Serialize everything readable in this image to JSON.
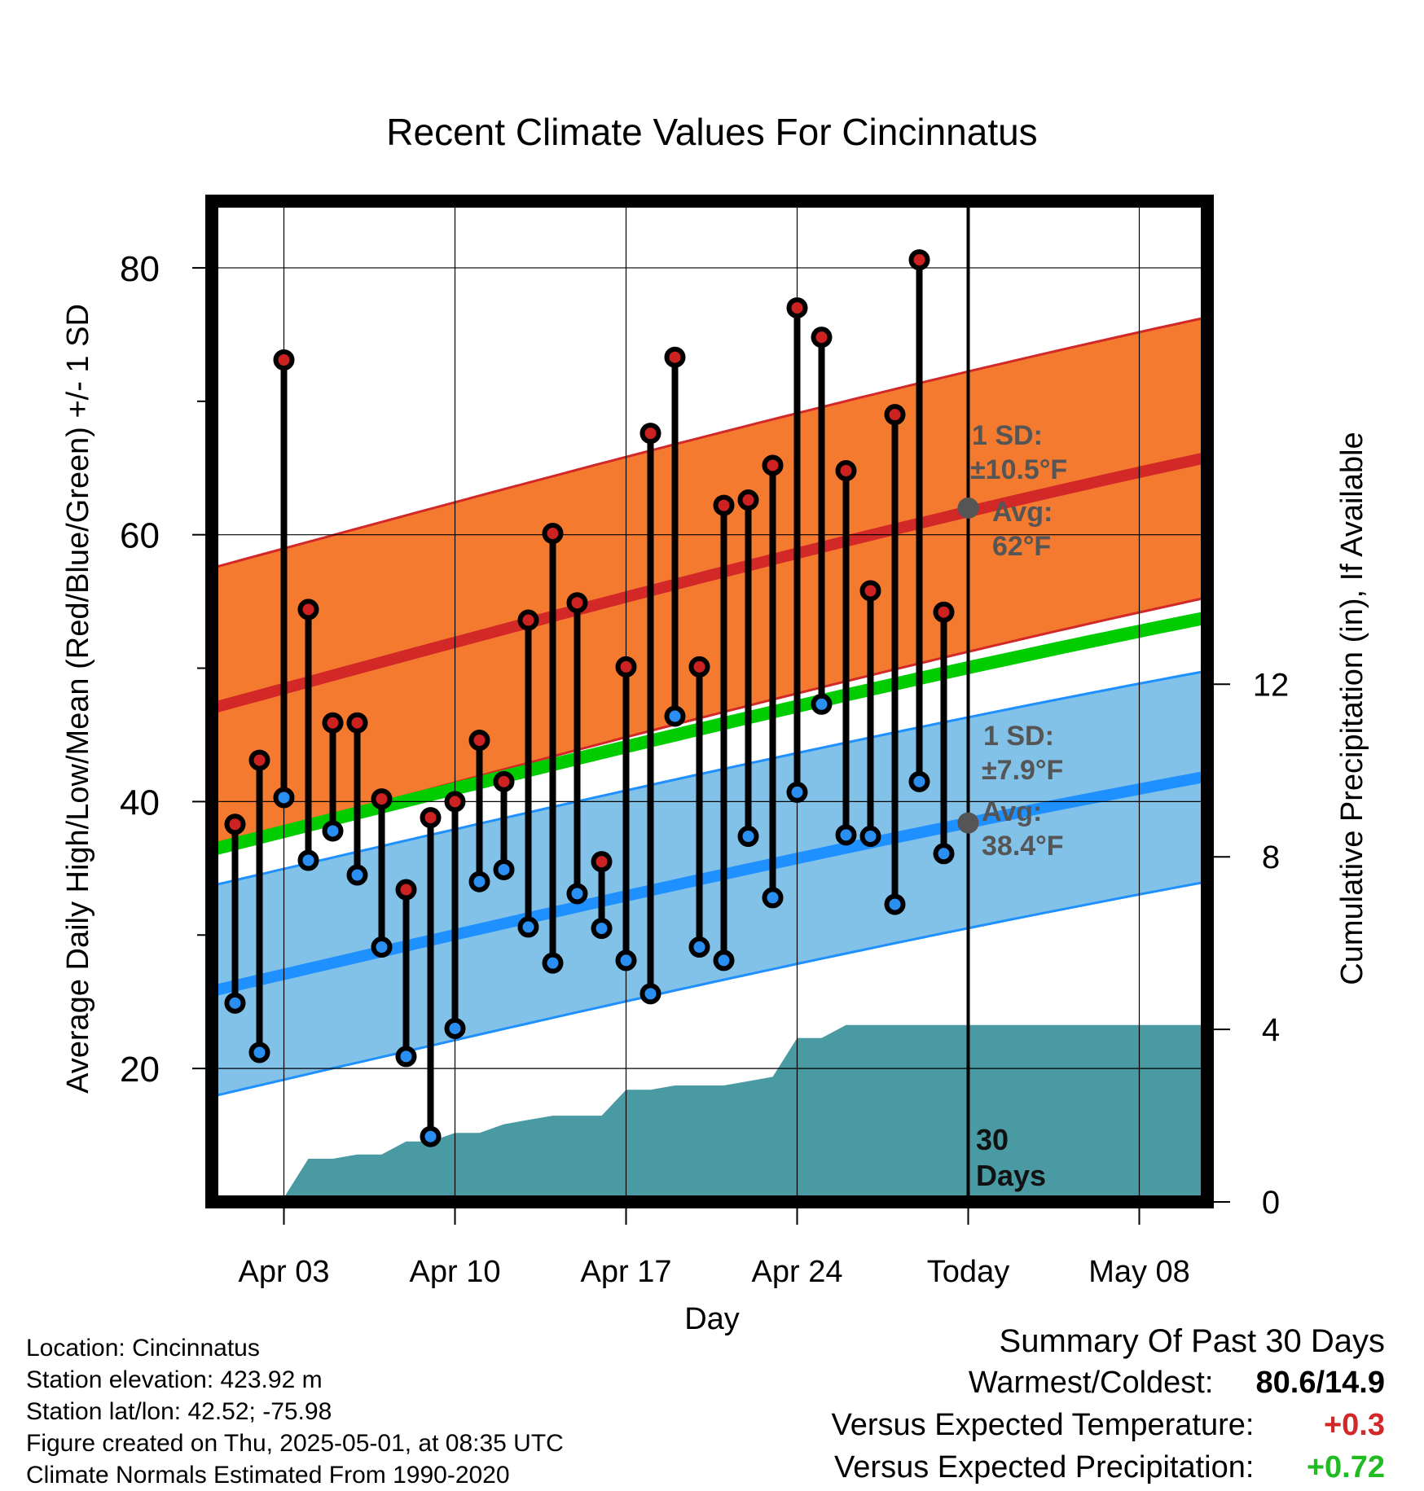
{
  "chart_data": {
    "type": "line",
    "title": "Recent Climate Values For Cincinnatus",
    "xlabel": "Day",
    "ylabel": "Average Daily High/Low/Mean (Red/Blue/Green) +/- 1 SD",
    "ylabel_right": "Cumulative Precipitation (in), If Available",
    "x_tick_labels": [
      "Apr 03",
      "Apr 10",
      "Apr 17",
      "Apr 24",
      "Today",
      "May 08"
    ],
    "y_ticks": [
      20,
      40,
      60,
      80
    ],
    "y_ticks_right": [
      0,
      4,
      8,
      12
    ],
    "ylim": [
      10,
      85
    ],
    "ylim_right": [
      0,
      23.2
    ],
    "grid": true,
    "dates": [
      "Apr 01",
      "Apr 02",
      "Apr 03",
      "Apr 04",
      "Apr 05",
      "Apr 06",
      "Apr 07",
      "Apr 08",
      "Apr 09",
      "Apr 10",
      "Apr 11",
      "Apr 12",
      "Apr 13",
      "Apr 14",
      "Apr 15",
      "Apr 16",
      "Apr 17",
      "Apr 18",
      "Apr 19",
      "Apr 20",
      "Apr 21",
      "Apr 22",
      "Apr 23",
      "Apr 24",
      "Apr 25",
      "Apr 26",
      "Apr 27",
      "Apr 28",
      "Apr 29",
      "Apr 30"
    ],
    "series": [
      {
        "name": "High",
        "color": "#cc2222",
        "values": [
          38.3,
          43.1,
          73.1,
          54.4,
          45.9,
          45.9,
          40.2,
          33.4,
          38.8,
          40.0,
          44.6,
          41.5,
          53.6,
          60.1,
          54.9,
          35.5,
          50.1,
          67.6,
          73.3,
          50.1,
          62.2,
          62.6,
          65.2,
          77.0,
          74.8,
          64.8,
          55.8,
          69.0,
          80.6,
          54.2
        ]
      },
      {
        "name": "Low",
        "color": "#2a8ff0",
        "values": [
          24.9,
          21.2,
          40.3,
          35.6,
          37.8,
          34.5,
          29.1,
          20.9,
          14.9,
          23.0,
          34.0,
          34.9,
          30.6,
          27.9,
          33.1,
          30.5,
          28.1,
          25.6,
          46.4,
          29.1,
          28.1,
          37.4,
          32.8,
          40.7,
          47.3,
          37.5,
          37.4,
          32.3,
          41.5,
          36.1
        ]
      }
    ],
    "normals": {
      "high_color": "#d22828",
      "high_band_color": "#f47a30",
      "low_color": "#1e90ff",
      "low_band_color": "#82c2e8",
      "mean_color": "#00cc00",
      "high_start": 47.0,
      "high_end": 65.8,
      "high_sd": 10.5,
      "low_start": 25.8,
      "low_end": 41.9,
      "low_sd": 7.9,
      "mean_start": 36.4,
      "mean_end": 53.8
    },
    "precip": {
      "color": "#4a9aa3",
      "cumulative": [
        0.0,
        0.1,
        0.1,
        1.0,
        1.0,
        1.1,
        1.1,
        1.4,
        1.4,
        1.6,
        1.6,
        1.8,
        1.9,
        2.0,
        2.0,
        2.0,
        2.6,
        2.6,
        2.7,
        2.7,
        2.7,
        2.8,
        2.9,
        3.8,
        3.8,
        4.1,
        4.1,
        4.1,
        4.1,
        4.1
      ],
      "final_through_end": 4.1
    },
    "annotations": {
      "high_sd_label": "1 SD:",
      "high_sd_value": "±10.5°F",
      "high_avg_label": "Avg:",
      "high_avg_value": "62°F",
      "high_avg_point": 62.0,
      "low_sd_label": "1 SD:",
      "low_sd_value": "±7.9°F",
      "low_avg_label": "Avg:",
      "low_avg_value": "38.4°F",
      "low_avg_point": 38.4,
      "days_line1": "30",
      "days_line2": "Days",
      "annotation_color": "#555555"
    }
  },
  "footer": {
    "location": "Location: Cincinnatus",
    "elevation": "Station elevation: 423.92 m",
    "latlon": "Station lat/lon: 42.52; -75.98",
    "created": "Figure created on Thu, 2025-05-01, at 08:35 UTC",
    "normals": "Climate Normals Estimated From 1990-2020"
  },
  "summary": {
    "title": "Summary Of Past 30 Days",
    "warmest_label": "Warmest/Coldest:",
    "warmest_value": "80.6/14.9",
    "temp_label": "Versus Expected Temperature:",
    "temp_value": "+0.3",
    "temp_color": "#d22828",
    "precip_label": "Versus Expected Precipitation:",
    "precip_value": "+0.72",
    "precip_color": "#22bb22"
  }
}
